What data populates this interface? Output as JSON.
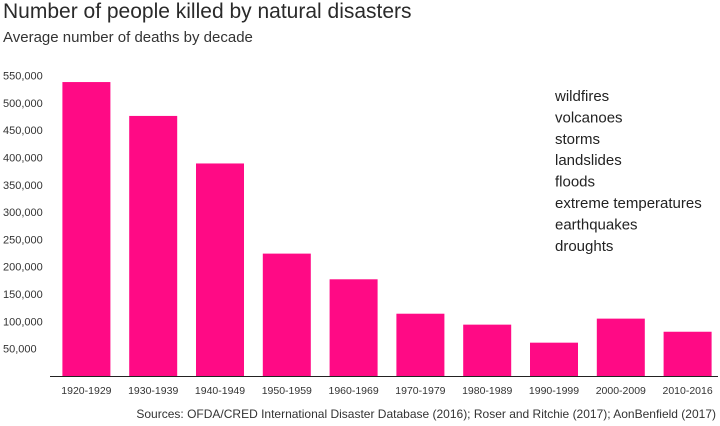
{
  "header": {
    "title": "Number of people killed by natural disasters",
    "subtitle": "Average number of deaths by decade"
  },
  "footer": {
    "source": "Sources: OFDA/CRED International Disaster Database (2016); Roser and Ritchie (2017); AonBenfield (2017)"
  },
  "colors": {
    "bar": "#ff0a85",
    "axis": "#222222"
  },
  "chart_data": {
    "type": "bar",
    "title": "Number of people killed by natural disasters",
    "subtitle": "Average number of deaths by decade",
    "xlabel": "",
    "ylabel": "",
    "categories": [
      "1920-1929",
      "1930-1939",
      "1940-1949",
      "1950-1959",
      "1960-1969",
      "1970-1979",
      "1980-1989",
      "1990-1999",
      "2000-2009",
      "2010-2016"
    ],
    "values": [
      538000,
      476000,
      389000,
      224000,
      177000,
      114000,
      94000,
      61000,
      105000,
      81000
    ],
    "ylim": [
      0,
      550000
    ],
    "yticks": [
      50000,
      100000,
      150000,
      200000,
      250000,
      300000,
      350000,
      400000,
      450000,
      500000,
      550000
    ],
    "ytick_labels": [
      "50,000",
      "100,000",
      "150,000",
      "200,000",
      "250,000",
      "300,000",
      "350,000",
      "400,000",
      "450,000",
      "500,000",
      "550,000"
    ],
    "legend": [
      "wildfires",
      "volcanoes",
      "storms",
      "landslides",
      "floods",
      "extreme temperatures",
      "earthquakes",
      "droughts"
    ],
    "legend_position": "top-right",
    "grid": false
  }
}
